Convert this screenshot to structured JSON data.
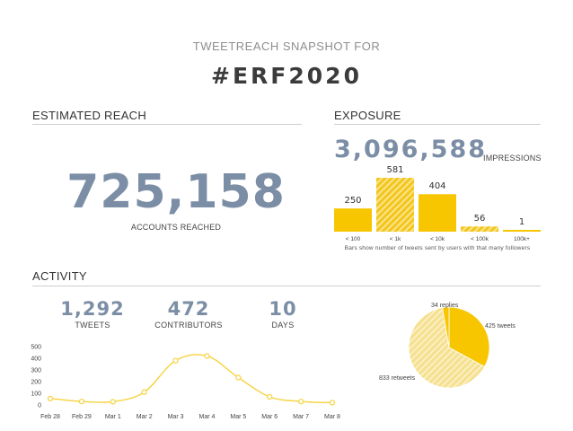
{
  "header": {
    "subtitle": "TWEETREACH SNAPSHOT FOR",
    "hashtag": "#ERF2020"
  },
  "estimated_reach": {
    "title": "ESTIMATED REACH",
    "value": "725,158",
    "caption": "ACCOUNTS REACHED"
  },
  "exposure": {
    "title": "EXPOSURE",
    "impressions_value": "3,096,588",
    "impressions_label": "IMPRESSIONS",
    "footnote": "Bars show number of tweets sent by users with that many followers"
  },
  "activity": {
    "title": "ACTIVITY",
    "stats": [
      {
        "value": "1,292",
        "label": "TWEETS"
      },
      {
        "value": "472",
        "label": "CONTRIBUTORS"
      },
      {
        "value": "10",
        "label": "DAYS"
      }
    ]
  },
  "colors": {
    "accent_number": "#7c8ea6",
    "yellow": "#f7c600",
    "yellow_light": "#f6dc76",
    "rule": "#cfcfcf"
  },
  "chart_data": [
    {
      "type": "bar",
      "categories": [
        "< 100",
        "< 1k",
        "< 10k",
        "< 100k",
        "100k+"
      ],
      "values": [
        250,
        581,
        404,
        56,
        1
      ],
      "value_labels": [
        "250",
        "581",
        "404",
        "56",
        "1"
      ],
      "fills": [
        "solid",
        "hatched",
        "solid",
        "hatched",
        "solid"
      ],
      "ylim": [
        0,
        581
      ],
      "grid": false
    },
    {
      "type": "line",
      "x": [
        "Feb 28",
        "Feb 29",
        "Mar 1",
        "Mar 2",
        "Mar 3",
        "Mar 4",
        "Mar 5",
        "Mar 6",
        "Mar 7",
        "Mar 8"
      ],
      "values": [
        55,
        30,
        28,
        110,
        380,
        420,
        235,
        70,
        30,
        20
      ],
      "yticks": [
        "0",
        "100",
        "200",
        "300",
        "400",
        "500"
      ],
      "ylim": [
        0,
        500
      ],
      "grid": false
    },
    {
      "type": "pie",
      "slices": [
        {
          "label": "425 tweets",
          "value": 425,
          "fill": "solid"
        },
        {
          "label": "833 retweets",
          "value": 833,
          "fill": "hatched"
        },
        {
          "label": "34 replies",
          "value": 34,
          "fill": "solid"
        }
      ]
    }
  ]
}
